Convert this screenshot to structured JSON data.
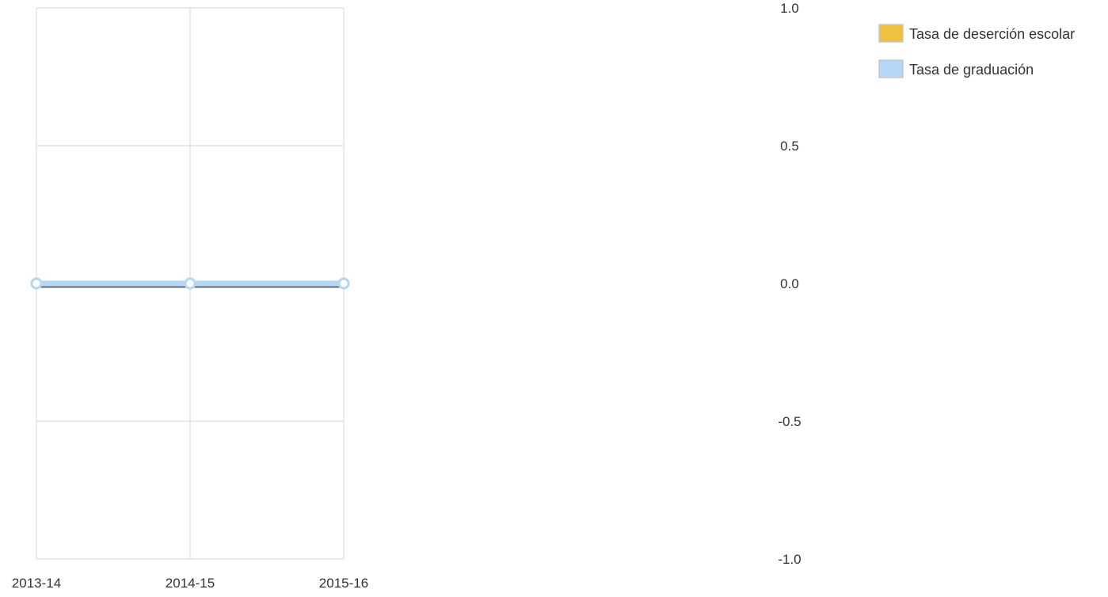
{
  "chart_data": {
    "type": "line",
    "title": "",
    "xlabel": "",
    "ylabel": "",
    "categories": [
      "2013-14",
      "2014-15",
      "2015-16"
    ],
    "ylim": [
      -1.0,
      1.0
    ],
    "y_ticks": [
      1.0,
      0.5,
      0.0,
      -0.5,
      -1.0
    ],
    "y_tick_labels": [
      "1.0",
      "0.5",
      "0.0",
      "-0.5",
      "-1.0"
    ],
    "grid": true,
    "legend_position": "top-right",
    "series": [
      {
        "name": "Tasa de deserción escolar",
        "values": [
          0,
          0,
          0
        ],
        "color": "#f0c040"
      },
      {
        "name": "Tasa de graduación",
        "values": [
          0,
          0,
          0
        ],
        "color": "#b3d7f5"
      }
    ]
  }
}
